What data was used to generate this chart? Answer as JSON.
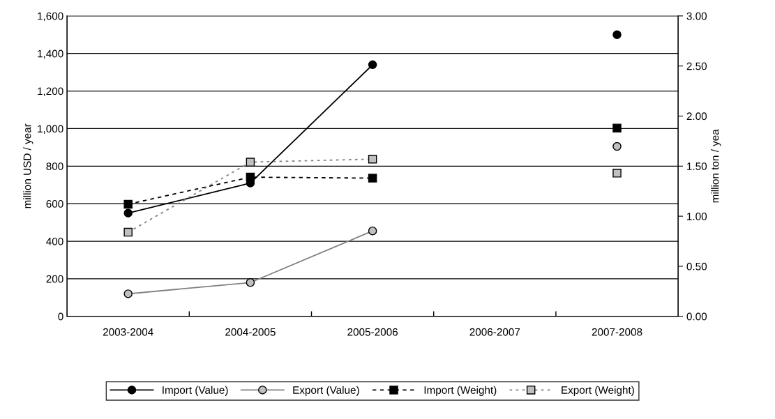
{
  "chart_data": {
    "type": "line",
    "categories": [
      "2003-2004",
      "2004-2005",
      "2005-2006",
      "2006-2007",
      "2007-2008"
    ],
    "ylabel": "million USD / year",
    "y2label": "million ton / yea",
    "ylim": [
      0,
      1600
    ],
    "yticks": [
      0,
      200,
      400,
      600,
      800,
      {
        "value": 1000,
        "label": "1,000"
      },
      {
        "value": 1200,
        "label": "1,200"
      },
      {
        "value": 1400,
        "label": "1,400"
      },
      {
        "value": 1600,
        "label": "1,600"
      }
    ],
    "y2lim": [
      0,
      3
    ],
    "y2ticks": [
      {
        "value": 0,
        "label": "0.00"
      },
      {
        "value": 0.5,
        "label": "0.50"
      },
      {
        "value": 1,
        "label": "1.00"
      },
      {
        "value": 1.5,
        "label": "1.50"
      },
      {
        "value": 2,
        "label": "2.00"
      },
      {
        "value": 2.5,
        "label": "2.50"
      },
      {
        "value": 3,
        "label": "3.00"
      }
    ],
    "grid": "y",
    "legend": "bottom",
    "series": [
      {
        "name": "Import (Value)",
        "color": "#000000",
        "marker": "circle",
        "line_style": "solid",
        "values": [
          550,
          710,
          1340,
          null,
          1500
        ]
      },
      {
        "name": "Export (Value)",
        "color": "#c0c0c0",
        "marker": "circle",
        "line_style": "solid",
        "values": [
          120,
          180,
          455,
          null,
          905
        ]
      },
      {
        "name": "Import (Weight)",
        "color": "#000000",
        "marker": "square",
        "line_style": "dashed",
        "axis": "y2",
        "values": [
          1.12,
          1.39,
          1.38,
          null,
          1.88
        ]
      },
      {
        "name": "Export (Weight)",
        "color": "#c0c0c0",
        "marker": "square",
        "line_style": "dotted",
        "axis": "y2",
        "values": [
          0.84,
          1.54,
          1.57,
          null,
          1.43
        ]
      }
    ]
  }
}
